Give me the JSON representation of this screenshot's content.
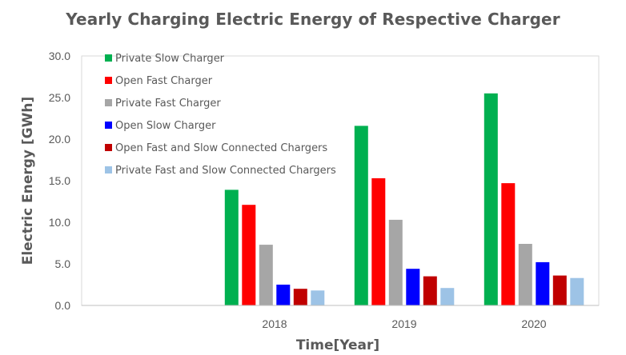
{
  "chart_data": {
    "type": "bar",
    "title": "Yearly Charging Electric Energy of Respective Charger",
    "xlabel": "Time[Year]",
    "ylabel": "Electric Energy [GWh]",
    "ylim": [
      0,
      30
    ],
    "y_ticks": [
      "0.0",
      "5.0",
      "10.0",
      "15.0",
      "20.0",
      "25.0",
      "30.0"
    ],
    "grid": false,
    "legend_position": "top-left",
    "categories": [
      "2018",
      "2019",
      "2020"
    ],
    "series": [
      {
        "name": "Private Slow Charger",
        "color": "#00b050",
        "values": [
          13.9,
          21.6,
          25.5
        ]
      },
      {
        "name": "Open Fast Charger",
        "color": "#ff0000",
        "values": [
          12.1,
          15.3,
          14.7
        ]
      },
      {
        "name": "Private Fast Charger",
        "color": "#a6a6a6",
        "values": [
          7.3,
          10.3,
          7.4
        ]
      },
      {
        "name": "Open Slow Charger",
        "color": "#0000ff",
        "values": [
          2.5,
          4.4,
          5.2
        ]
      },
      {
        "name": "Open Fast and Slow Connected Chargers",
        "color": "#c00000",
        "values": [
          2.0,
          3.5,
          3.6
        ]
      },
      {
        "name": "Private Fast and Slow Connected Chargers",
        "color": "#9dc3e6",
        "values": [
          1.8,
          2.1,
          3.3
        ]
      }
    ]
  }
}
